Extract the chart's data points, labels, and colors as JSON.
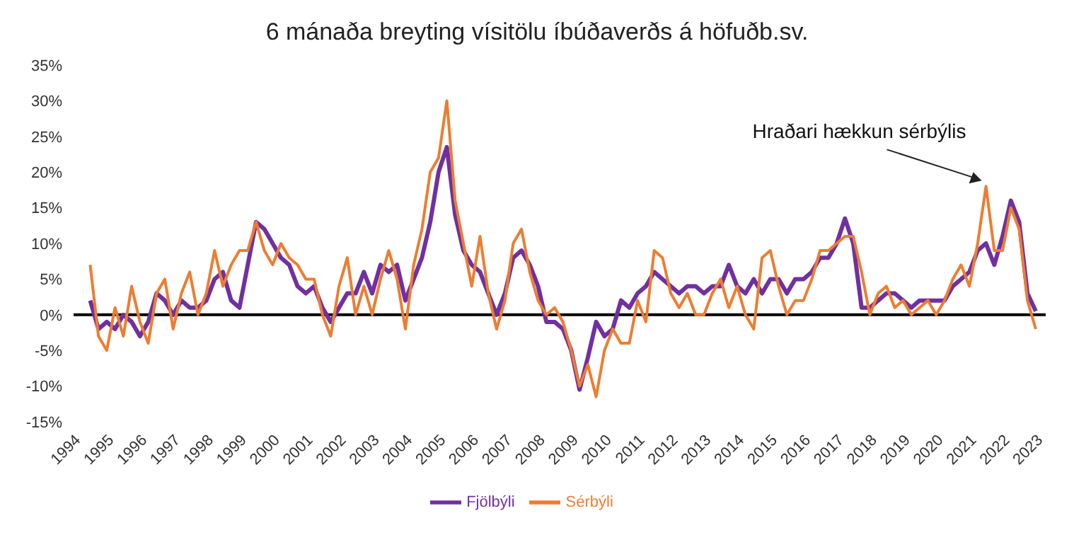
{
  "chart_data": {
    "type": "line",
    "title": "6 mánaða breyting vísitölu íbúðaverðs á höfuðb.sv.",
    "x": [
      1994.5,
      1994.75,
      1995,
      1995.25,
      1995.5,
      1995.75,
      1996,
      1996.25,
      1996.5,
      1996.75,
      1997,
      1997.25,
      1997.5,
      1997.75,
      1998,
      1998.25,
      1998.5,
      1998.75,
      1999,
      1999.25,
      1999.5,
      1999.75,
      2000,
      2000.25,
      2000.5,
      2000.75,
      2001,
      2001.25,
      2001.5,
      2001.75,
      2002,
      2002.25,
      2002.5,
      2002.75,
      2003,
      2003.25,
      2003.5,
      2003.75,
      2004,
      2004.25,
      2004.5,
      2004.75,
      2005,
      2005.25,
      2005.5,
      2005.75,
      2006,
      2006.25,
      2006.5,
      2006.75,
      2007,
      2007.25,
      2007.5,
      2007.75,
      2008,
      2008.25,
      2008.5,
      2008.75,
      2009,
      2009.25,
      2009.5,
      2009.75,
      2010,
      2010.25,
      2010.5,
      2010.75,
      2011,
      2011.25,
      2011.5,
      2011.75,
      2012,
      2012.25,
      2012.5,
      2012.75,
      2013,
      2013.25,
      2013.5,
      2013.75,
      2014,
      2014.25,
      2014.5,
      2014.75,
      2015,
      2015.25,
      2015.5,
      2015.75,
      2016,
      2016.25,
      2016.5,
      2016.75,
      2017,
      2017.25,
      2017.5,
      2017.75,
      2018,
      2018.25,
      2018.5,
      2018.75,
      2019,
      2019.25,
      2019.5,
      2019.75,
      2020,
      2020.25,
      2020.5,
      2020.75,
      2021,
      2021.25,
      2021.5,
      2021.75,
      2022,
      2022.25,
      2022.5,
      2022.75,
      2023
    ],
    "series": [
      {
        "name": "Fjölbýli",
        "color": "#7030a0",
        "values": [
          2,
          -2,
          -1,
          -2,
          0,
          -1,
          -3,
          -1,
          3,
          2,
          0,
          2,
          1,
          1,
          2,
          5,
          6,
          2,
          1,
          7,
          13,
          12,
          10,
          8,
          7,
          4,
          3,
          4,
          1,
          -1,
          1,
          3,
          3,
          6,
          3,
          7,
          6,
          7,
          2,
          5,
          8,
          13,
          20,
          23.5,
          14,
          9,
          7,
          6,
          3,
          0,
          3,
          8,
          9,
          7,
          4,
          -1,
          -1,
          -2,
          -5,
          -10.5,
          -6,
          -1,
          -3,
          -2,
          2,
          1,
          3,
          4,
          6,
          5,
          4,
          3,
          4,
          4,
          3,
          4,
          4,
          7,
          4,
          3,
          5,
          3,
          5,
          5,
          3,
          5,
          5,
          6,
          8,
          8,
          10,
          13.5,
          10,
          1,
          1,
          2,
          3,
          3,
          2,
          1,
          2,
          2,
          2,
          2,
          4,
          5,
          6,
          9,
          10,
          7,
          11,
          16,
          13,
          3,
          0.5
        ]
      },
      {
        "name": "Sérbýli",
        "color": "#ed7d31",
        "values": [
          7,
          -3,
          -5,
          1,
          -3,
          4,
          -1,
          -4,
          3,
          5,
          -2,
          3,
          6,
          0,
          3,
          9,
          4,
          7,
          9,
          9,
          13,
          9,
          7,
          10,
          8,
          7,
          5,
          5,
          0,
          -3,
          4,
          8,
          0,
          4,
          0,
          5,
          9,
          5,
          -2,
          7,
          12,
          20,
          22,
          30,
          16,
          10,
          4,
          11,
          3,
          -2,
          2,
          10,
          12,
          6,
          2,
          0,
          1,
          -1,
          -5,
          -10,
          -7,
          -11.5,
          -5,
          -2,
          -4,
          -4,
          2,
          -1,
          9,
          8,
          3,
          1,
          3,
          0,
          0,
          3,
          5,
          1,
          4,
          0,
          -2,
          8,
          9,
          4,
          0,
          2,
          2,
          5,
          9,
          9,
          10,
          11,
          11,
          6,
          0,
          3,
          4,
          1,
          2,
          0,
          1,
          2,
          0,
          2,
          5,
          7,
          4,
          10,
          18,
          9,
          9,
          15,
          12,
          2,
          -2
        ]
      }
    ],
    "xlim": [
      1994,
      2023.3
    ],
    "xticks": [
      1994,
      1995,
      1996,
      1997,
      1998,
      1999,
      2000,
      2001,
      2002,
      2003,
      2004,
      2005,
      2006,
      2007,
      2008,
      2009,
      2010,
      2011,
      2012,
      2013,
      2014,
      2015,
      2016,
      2017,
      2018,
      2019,
      2020,
      2021,
      2022,
      2023
    ],
    "ylim": [
      -15,
      35
    ],
    "yticks": [
      {
        "value": -15,
        "label": "-15%"
      },
      {
        "value": -10,
        "label": "-10%"
      },
      {
        "value": -5,
        "label": "-5%"
      },
      {
        "value": 0,
        "label": "0%"
      },
      {
        "value": 5,
        "label": "5%"
      },
      {
        "value": 10,
        "label": "10%"
      },
      {
        "value": 15,
        "label": "15%"
      },
      {
        "value": 20,
        "label": "20%"
      },
      {
        "value": 25,
        "label": "25%"
      },
      {
        "value": 30,
        "label": "30%"
      },
      {
        "value": 35,
        "label": "35%"
      }
    ],
    "ref_lines": [
      {
        "axis": "y",
        "value": 0,
        "color": "#000000"
      }
    ],
    "annotations": [
      {
        "text": "Hraðari hækkun sérbýlis",
        "x": 2021.5,
        "y": 18
      }
    ],
    "grid": false,
    "legend": "bottom",
    "marker": "none",
    "line_style": "solid"
  }
}
